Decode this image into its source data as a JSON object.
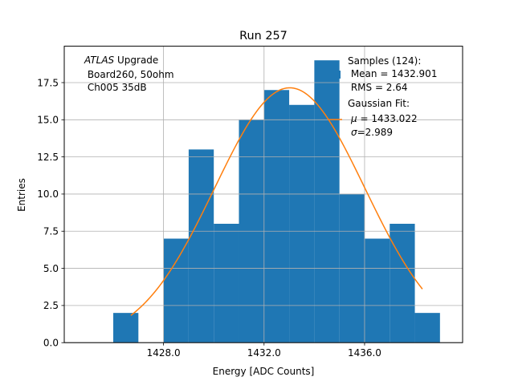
{
  "chart_data": {
    "type": "bar",
    "title": "Run 257",
    "xlabel": "Energy [ADC Counts]",
    "ylabel": "Entries",
    "xlim": [
      1424.05,
      1439.9
    ],
    "ylim": [
      0,
      19.95
    ],
    "grid": true,
    "x_ticks": [
      1428.0,
      1432.0,
      1436.0
    ],
    "x_tick_labels": [
      "1428.0",
      "1432.0",
      "1436.0"
    ],
    "y_ticks": [
      0.0,
      2.5,
      5.0,
      7.5,
      10.0,
      12.5,
      15.0,
      17.5
    ],
    "y_tick_labels": [
      "0.0",
      "2.5",
      "5.0",
      "7.5",
      "10.0",
      "12.5",
      "15.0",
      "17.5"
    ],
    "bin_edges": [
      1426.0,
      1427.0,
      1428.0,
      1429.0,
      1430.0,
      1431.0,
      1432.0,
      1433.0,
      1434.0,
      1435.0,
      1436.0,
      1437.0,
      1438.0,
      1439.0
    ],
    "counts": [
      2,
      0,
      7,
      13,
      8,
      15,
      17,
      16,
      19,
      10,
      7,
      8,
      2
    ],
    "bar_color": "#1f77b4",
    "fit_color": "#ff7f0e",
    "fit": {
      "mu": 1433.022,
      "sigma": 2.989,
      "amplitude": 17.15,
      "x_range": [
        1426.7,
        1438.3
      ]
    },
    "annotation": {
      "italic": "ATLAS",
      "line1_rest": " Upgrade",
      "line2": " Board260, 50ohm",
      "line3": " Ch005 35dB"
    },
    "legend": {
      "position": "top-right",
      "samples_title": "Samples (124):",
      "samples_mean": " Mean = 1432.901",
      "samples_rms": " RMS = 2.64",
      "fit_title": "Gaussian Fit:",
      "fit_mu_symbol": "μ",
      "fit_mu_value": " = 1433.022",
      "fit_sigma_symbol": "σ",
      "fit_sigma_value": "=2.989"
    }
  }
}
